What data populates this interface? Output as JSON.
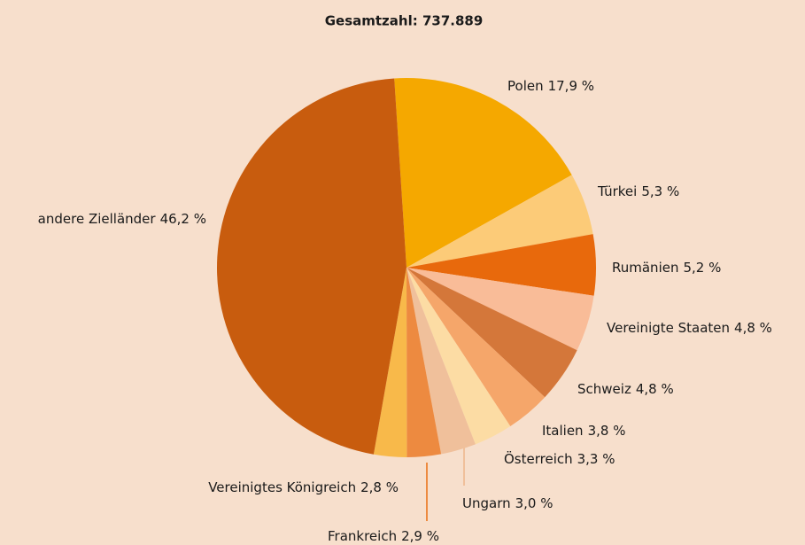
{
  "chart_data": {
    "type": "pie",
    "title": "Gesamtzahl: 737.889",
    "categories": [
      "Polen",
      "Türkei",
      "Rumänien",
      "Vereinigte Staaten",
      "Schweiz",
      "Italien",
      "Österreich",
      "Ungarn",
      "Frankreich",
      "Vereinigtes Königreich",
      "andere Zielländer"
    ],
    "values": [
      17.9,
      5.3,
      5.2,
      4.8,
      4.8,
      3.8,
      3.3,
      3.0,
      2.9,
      2.8,
      46.2
    ],
    "value_labels": [
      "17,9 %",
      "5,3 %",
      "5,2 %",
      "4,8 %",
      "4,8 %",
      "3,8 %",
      "3,3 %",
      "3,0 %",
      "2,9 %",
      "2,8 %",
      "46,2 %"
    ],
    "colors": [
      "#f5a800",
      "#fccb78",
      "#e8690c",
      "#f9bc98",
      "#d4773a",
      "#f5a66a",
      "#fcdca4",
      "#f0c09b",
      "#ed8a40",
      "#f8b94a",
      "#c85c0e"
    ]
  }
}
